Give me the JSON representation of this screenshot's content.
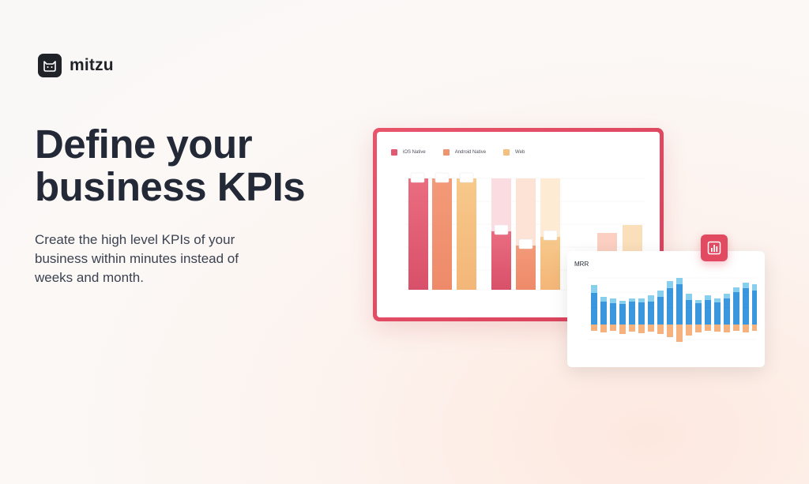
{
  "brand": {
    "name": "mitzu"
  },
  "hero": {
    "headline_line1": "Define your",
    "headline_line2": "business KPIs",
    "subtext": "Create the high level KPIs of your business within minutes instead of weeks and month."
  },
  "colors": {
    "ios": "#e15a72",
    "android": "#f0936f",
    "web": "#f5c07f",
    "accent": "#e14a60",
    "mrr_positive": "#3b97dd",
    "mrr_positive_light": "#88cfee",
    "mrr_negative": "#f5b27e"
  },
  "funnel_card": {
    "legend": [
      "iOS Native",
      "Android Native",
      "Web"
    ]
  },
  "mrr_card": {
    "title": "MRR"
  },
  "icons": {
    "logo": "cat-icon",
    "badge": "bar-chart-icon"
  }
}
